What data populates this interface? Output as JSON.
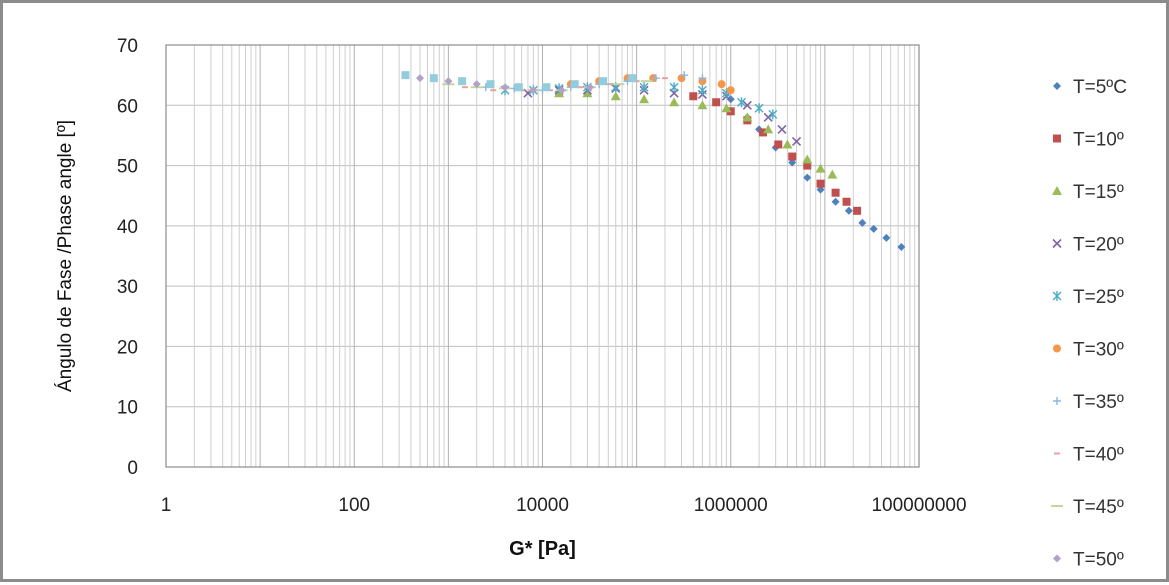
{
  "chart_data": {
    "type": "scatter",
    "title": "",
    "xlabel": "G* [Pa]",
    "ylabel": "Ángulo de Fase /Phase angle [º]",
    "x_scale": "log",
    "xlim": [
      1,
      100000000
    ],
    "ylim": [
      0,
      70
    ],
    "x_tick_labels": [
      "1",
      "100",
      "10000",
      "1000000",
      "100000000"
    ],
    "x_ticks": [
      1,
      100,
      10000,
      1000000,
      100000000
    ],
    "y_ticks": [
      0,
      10,
      20,
      30,
      40,
      50,
      60,
      70
    ],
    "y_tick_labels": [
      "0",
      "10",
      "20",
      "30",
      "40",
      "50",
      "60",
      "70"
    ],
    "grid": true,
    "legend_position": "right",
    "series": [
      {
        "name": "T=5ºC",
        "color": "#4f81bd",
        "marker": "diamond",
        "points": [
          [
            1000000,
            61.0
          ],
          [
            1500000,
            58.0
          ],
          [
            2000000,
            56.0
          ],
          [
            3000000,
            53.0
          ],
          [
            4500000,
            50.5
          ],
          [
            6500000,
            48.0
          ],
          [
            9000000,
            46.0
          ],
          [
            13000000,
            44.0
          ],
          [
            18000000,
            42.5
          ],
          [
            25000000,
            40.5
          ],
          [
            33000000,
            39.5
          ],
          [
            45000000,
            38.0
          ],
          [
            65000000,
            36.5
          ]
        ]
      },
      {
        "name": "T=10º",
        "color": "#c0504d",
        "marker": "square",
        "points": [
          [
            400000,
            61.5
          ],
          [
            700000,
            60.5
          ],
          [
            1000000,
            59.0
          ],
          [
            1500000,
            57.5
          ],
          [
            2200000,
            55.5
          ],
          [
            3200000,
            53.5
          ],
          [
            4500000,
            51.5
          ],
          [
            6500000,
            50.0
          ],
          [
            9000000,
            47.0
          ],
          [
            13000000,
            45.5
          ],
          [
            17000000,
            44.0
          ],
          [
            22000000,
            42.5
          ]
        ]
      },
      {
        "name": "T=15º",
        "color": "#9bbb59",
        "marker": "triangle",
        "points": [
          [
            15000,
            62.0
          ],
          [
            30000,
            62.0
          ],
          [
            60000,
            61.5
          ],
          [
            120000,
            61.0
          ],
          [
            250000,
            60.5
          ],
          [
            500000,
            60.0
          ],
          [
            900000,
            59.5
          ],
          [
            1500000,
            58.0
          ],
          [
            2500000,
            56.0
          ],
          [
            4000000,
            53.5
          ],
          [
            6500000,
            51.0
          ],
          [
            9000000,
            49.5
          ],
          [
            12000000,
            48.5
          ]
        ]
      },
      {
        "name": "T=20º",
        "color": "#8064a2",
        "marker": "x",
        "points": [
          [
            7000,
            62.0
          ],
          [
            15000,
            62.5
          ],
          [
            30000,
            62.5
          ],
          [
            60000,
            62.8
          ],
          [
            120000,
            62.5
          ],
          [
            250000,
            62.0
          ],
          [
            500000,
            61.8
          ],
          [
            900000,
            61.5
          ],
          [
            1500000,
            60.0
          ],
          [
            2500000,
            58.0
          ],
          [
            3500000,
            56.0
          ],
          [
            5000000,
            54.0
          ]
        ]
      },
      {
        "name": "T=25º",
        "color": "#4bacc6",
        "marker": "star",
        "points": [
          [
            4000,
            62.5
          ],
          [
            8000,
            62.5
          ],
          [
            15000,
            62.8
          ],
          [
            30000,
            63.0
          ],
          [
            60000,
            63.0
          ],
          [
            120000,
            63.0
          ],
          [
            250000,
            63.0
          ],
          [
            500000,
            62.5
          ],
          [
            900000,
            62.0
          ],
          [
            1300000,
            60.5
          ],
          [
            2000000,
            59.5
          ],
          [
            2800000,
            58.5
          ]
        ]
      },
      {
        "name": "T=30º",
        "color": "#f79646",
        "marker": "circle",
        "points": [
          [
            20000,
            63.5
          ],
          [
            40000,
            64.0
          ],
          [
            80000,
            64.5
          ],
          [
            150000,
            64.5
          ],
          [
            300000,
            64.5
          ],
          [
            500000,
            64.0
          ],
          [
            800000,
            63.5
          ],
          [
            1000000,
            62.5
          ]
        ]
      },
      {
        "name": "T=35º",
        "color": "#8eb4e3",
        "marker": "plus",
        "points": [
          [
            2500,
            63.0
          ],
          [
            5000,
            62.8
          ],
          [
            10000,
            62.5
          ],
          [
            20000,
            63.0
          ],
          [
            40000,
            63.5
          ],
          [
            80000,
            64.0
          ],
          [
            160000,
            64.5
          ],
          [
            320000,
            65.0
          ],
          [
            500000,
            64.5
          ]
        ]
      },
      {
        "name": "T=40º",
        "color": "#e6a0a0",
        "marker": "dash",
        "points": [
          [
            1500,
            63.0
          ],
          [
            3000,
            62.5
          ],
          [
            6000,
            62.5
          ],
          [
            12000,
            62.5
          ],
          [
            25000,
            63.0
          ],
          [
            50000,
            63.5
          ],
          [
            100000,
            64.0
          ],
          [
            200000,
            64.5
          ]
        ]
      },
      {
        "name": "T=45º",
        "color": "#c3d69b",
        "marker": "longdash",
        "points": [
          [
            1000,
            63.5
          ],
          [
            2000,
            63.0
          ],
          [
            4000,
            62.8
          ],
          [
            8000,
            62.5
          ],
          [
            16000,
            62.5
          ],
          [
            32000,
            63.0
          ],
          [
            64000,
            63.5
          ],
          [
            128000,
            64.0
          ]
        ]
      },
      {
        "name": "T=50º",
        "color": "#b3a2c7",
        "marker": "diamond",
        "points": [
          [
            500,
            64.5
          ],
          [
            1000,
            64.0
          ],
          [
            2000,
            63.5
          ],
          [
            4000,
            63.0
          ],
          [
            8000,
            62.5
          ],
          [
            16000,
            62.5
          ],
          [
            32000,
            63.0
          ]
        ]
      },
      {
        "name": "",
        "color": "#93cddd",
        "marker": "square",
        "points": [
          [
            350,
            65.0
          ],
          [
            700,
            64.5
          ],
          [
            1400,
            64.0
          ],
          [
            2800,
            63.5
          ],
          [
            5600,
            63.0
          ],
          [
            11000,
            63.0
          ],
          [
            22000,
            63.5
          ],
          [
            44000,
            64.0
          ],
          [
            90000,
            64.5
          ]
        ]
      }
    ]
  }
}
